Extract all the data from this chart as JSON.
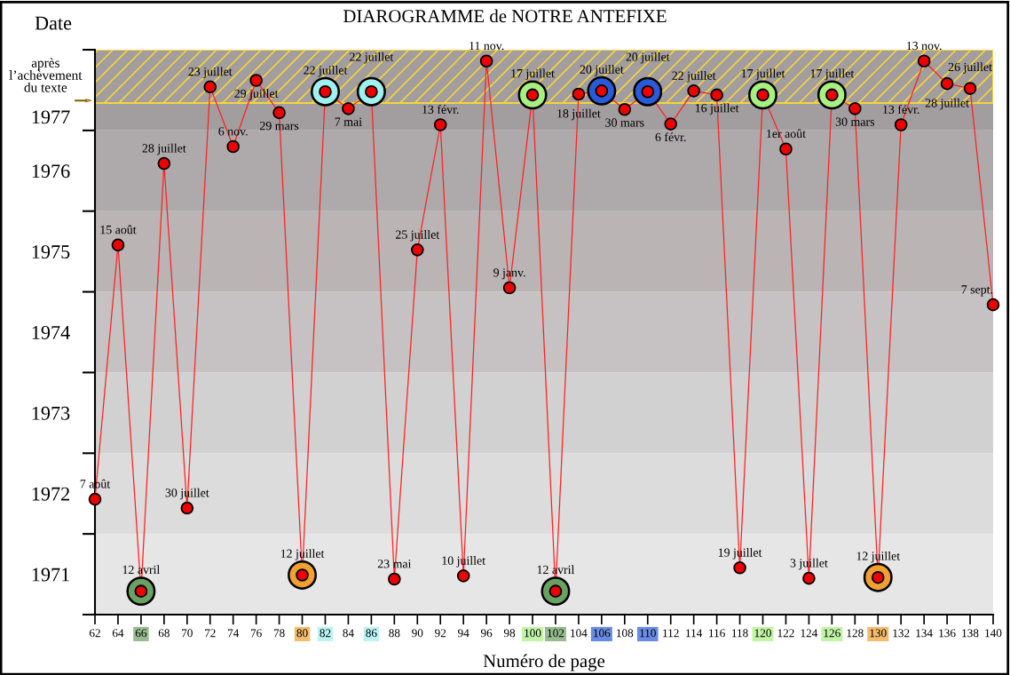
{
  "chart_data": {
    "type": "line",
    "title": "DIAROGRAMME de NOTRE ANTEFIXE",
    "xlabel": "Numéro de page",
    "ylabel": "Date",
    "xlim": [
      62,
      140
    ],
    "xticks": [
      62,
      64,
      66,
      68,
      70,
      72,
      74,
      76,
      78,
      80,
      82,
      84,
      86,
      88,
      90,
      92,
      94,
      96,
      98,
      100,
      102,
      104,
      106,
      108,
      110,
      112,
      114,
      116,
      118,
      120,
      122,
      124,
      126,
      128,
      130,
      132,
      134,
      136,
      138,
      140
    ],
    "ylim": [
      1971,
      1978
    ],
    "yticks": [
      {
        "value": 1971,
        "label": null
      },
      {
        "value": 1971.5,
        "label": "1971"
      },
      {
        "value": 1972,
        "label": null
      },
      {
        "value": 1972.5,
        "label": "1972"
      },
      {
        "value": 1973,
        "label": null
      },
      {
        "value": 1973.5,
        "label": "1973"
      },
      {
        "value": 1974,
        "label": null
      },
      {
        "value": 1974.5,
        "label": "1974"
      },
      {
        "value": 1975,
        "label": null
      },
      {
        "value": 1975.5,
        "label": "1975"
      },
      {
        "value": 1976,
        "label": null
      },
      {
        "value": 1976.5,
        "label": "1976"
      },
      {
        "value": 1977,
        "label": null
      },
      {
        "value": 1977.17,
        "label": "1977"
      },
      {
        "value": 1978,
        "label": null
      }
    ],
    "bands": [
      {
        "axis": "y",
        "from": 1971,
        "to": 1972,
        "color": "#e6e6e6"
      },
      {
        "axis": "y",
        "from": 1972,
        "to": 1973,
        "color": "#dcdcdc"
      },
      {
        "axis": "y",
        "from": 1973,
        "to": 1974,
        "color": "#d2d1d1"
      },
      {
        "axis": "y",
        "from": 1974,
        "to": 1975,
        "color": "#c6c2c3"
      },
      {
        "axis": "y",
        "from": 1975,
        "to": 1976,
        "color": "#bab4b5"
      },
      {
        "axis": "y",
        "from": 1976,
        "to": 1977,
        "color": "#aeaaab"
      },
      {
        "axis": "y",
        "from": 1977,
        "to": 1978,
        "color": "#a29d9e"
      },
      {
        "axis": "y",
        "from": 1977.34,
        "to": 1978,
        "label": "après\nl’achèvement\ndu texte",
        "color": "#f5d33a"
      }
    ],
    "grid": false,
    "legend": false,
    "marker": "circle",
    "line_style": "solid",
    "series": [
      {
        "type": "line",
        "color": "#ff2020",
        "x": [
          62,
          64,
          66,
          68,
          70,
          72,
          74,
          76,
          78,
          80,
          82,
          84,
          86,
          88,
          90,
          92,
          94,
          96,
          98,
          100,
          102,
          104,
          106,
          108,
          110,
          112,
          114,
          116,
          118,
          120,
          122,
          124,
          126,
          128,
          130,
          132,
          134,
          136,
          138,
          140
        ],
        "values": [
          1972.43,
          1975.58,
          1971.29,
          1976.59,
          1972.32,
          1977.54,
          1976.8,
          1977.62,
          1977.22,
          1971.49,
          1977.48,
          1977.27,
          1977.48,
          1971.44,
          1975.52,
          1977.07,
          1971.48,
          1977.86,
          1975.05,
          1977.44,
          1971.29,
          1977.45,
          1977.49,
          1977.26,
          1977.48,
          1977.08,
          1977.49,
          1977.44,
          1971.58,
          1977.44,
          1976.77,
          1971.45,
          1977.44,
          1977.27,
          1971.46,
          1977.07,
          1977.86,
          1977.58,
          1977.52,
          1974.84
        ]
      },
      {
        "type": "scatter",
        "x": [
          66,
          80,
          82,
          86,
          100,
          102,
          106,
          110,
          120,
          126,
          130
        ],
        "values": [
          1971.29,
          1971.49,
          1977.48,
          1977.48,
          1977.44,
          1971.29,
          1977.49,
          1977.48,
          1977.44,
          1977.44,
          1971.46
        ],
        "colors": [
          "#6aa060",
          "#f0a030",
          "#a0f0f0",
          "#a0f0f0",
          "#a8f080",
          "#6aa060",
          "#2a5ad8",
          "#2a5ad8",
          "#a8f080",
          "#a8f080",
          "#f0a030"
        ]
      }
    ],
    "annotations": [
      {
        "text": "7 août",
        "x": 62,
        "y": 1972.43
      },
      {
        "text": "15 août",
        "x": 64,
        "y": 1975.58
      },
      {
        "text": "12 avril",
        "x": 66,
        "y": 1971.29
      },
      {
        "text": "28 juillet",
        "x": 68,
        "y": 1976.59
      },
      {
        "text": "30 juillet",
        "x": 70,
        "y": 1972.32
      },
      {
        "text": "23 juillet",
        "x": 72,
        "y": 1977.54
      },
      {
        "text": "6 nov.",
        "x": 74,
        "y": 1976.8
      },
      {
        "text": "29 juillet",
        "x": 76,
        "y": 1977.62
      },
      {
        "text": "29 mars",
        "x": 78,
        "y": 1977.22
      },
      {
        "text": "12 juillet",
        "x": 80,
        "y": 1971.49
      },
      {
        "text": "22 juillet",
        "x": 82,
        "y": 1977.48
      },
      {
        "text": "7 mai",
        "x": 84,
        "y": 1977.27
      },
      {
        "text": "22 juillet",
        "x": 86,
        "y": 1977.48
      },
      {
        "text": "23 mai",
        "x": 88,
        "y": 1971.44
      },
      {
        "text": "25 juillet",
        "x": 90,
        "y": 1975.52
      },
      {
        "text": "13 févr.",
        "x": 92,
        "y": 1977.07
      },
      {
        "text": "10 juillet",
        "x": 94,
        "y": 1971.48
      },
      {
        "text": "11 nov.",
        "x": 96,
        "y": 1977.86
      },
      {
        "text": "9 janv.",
        "x": 98,
        "y": 1975.05
      },
      {
        "text": "17 juillet",
        "x": 100,
        "y": 1977.44
      },
      {
        "text": "12 avril",
        "x": 102,
        "y": 1971.29
      },
      {
        "text": "18 juillet",
        "x": 104,
        "y": 1977.45
      },
      {
        "text": "20 juillet",
        "x": 106,
        "y": 1977.49
      },
      {
        "text": "30 mars",
        "x": 108,
        "y": 1977.26
      },
      {
        "text": "20 juillet",
        "x": 110,
        "y": 1977.48
      },
      {
        "text": "6 févr.",
        "x": 112,
        "y": 1977.08
      },
      {
        "text": "22 juillet",
        "x": 114,
        "y": 1977.49
      },
      {
        "text": "16 juillet",
        "x": 116,
        "y": 1977.44
      },
      {
        "text": "19 juillet",
        "x": 118,
        "y": 1971.58
      },
      {
        "text": "17 juillet",
        "x": 120,
        "y": 1977.44
      },
      {
        "text": "1er août",
        "x": 122,
        "y": 1976.77
      },
      {
        "text": "3 juillet",
        "x": 124,
        "y": 1971.45
      },
      {
        "text": "17 juillet",
        "x": 126,
        "y": 1977.44
      },
      {
        "text": "30 mars",
        "x": 128,
        "y": 1977.27
      },
      {
        "text": "12 juillet",
        "x": 130,
        "y": 1971.46
      },
      {
        "text": "13 févr.",
        "x": 132,
        "y": 1977.07
      },
      {
        "text": "13 nov.",
        "x": 134,
        "y": 1977.86
      },
      {
        "text": "28 juillet",
        "x": 136,
        "y": 1977.58
      },
      {
        "text": "26 juillet",
        "x": 138,
        "y": 1977.52
      },
      {
        "text": "7 sept.",
        "x": 140,
        "y": 1974.84
      }
    ]
  }
}
